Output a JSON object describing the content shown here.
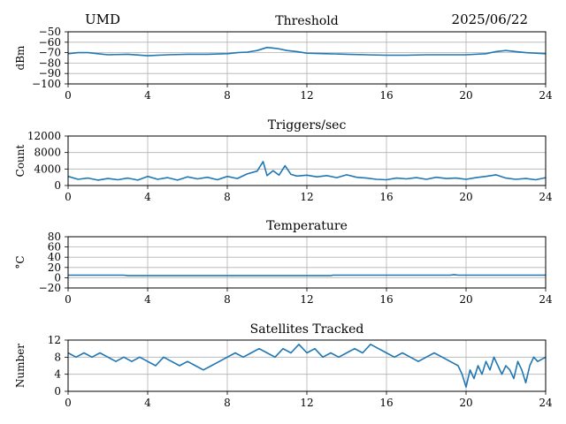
{
  "header": {
    "station": "UMD",
    "date": "2025/06/22"
  },
  "style": {
    "line_color": "#1f77b4",
    "grid_color": "#b0b0b0"
  },
  "chart_data": [
    {
      "type": "line",
      "title": "Threshold",
      "xlabel": "",
      "ylabel": "dBm",
      "xlim": [
        0,
        24
      ],
      "ylim": [
        -100,
        -50
      ],
      "xticks": [
        0,
        4,
        8,
        12,
        16,
        20,
        24
      ],
      "yticks": [
        -100,
        -90,
        -80,
        -70,
        -60,
        -50
      ],
      "ytick_labels": [
        "−100",
        "−90",
        "−80",
        "−70",
        "−60",
        "−50"
      ],
      "grid": true,
      "series": [
        {
          "x": [
            0,
            0.5,
            1,
            1.5,
            2,
            3,
            4,
            5,
            6,
            7,
            8,
            8.5,
            9,
            9.5,
            10,
            10.5,
            11,
            11.5,
            12,
            13,
            14,
            15,
            16,
            17,
            18,
            19,
            20,
            21,
            21.5,
            22,
            22.5,
            23,
            24
          ],
          "y": [
            -71,
            -70,
            -70,
            -71,
            -72,
            -71.5,
            -73,
            -72,
            -71.5,
            -71.5,
            -71,
            -70,
            -69.5,
            -68,
            -65,
            -66,
            -68,
            -69,
            -70.5,
            -71,
            -71.5,
            -72,
            -72.5,
            -72.5,
            -72,
            -72,
            -72,
            -71,
            -69,
            -68,
            -69,
            -70,
            -71
          ]
        }
      ]
    },
    {
      "type": "line",
      "title": "Triggers/sec",
      "xlabel": "",
      "ylabel": "Count",
      "xlim": [
        0,
        24
      ],
      "ylim": [
        0,
        12000
      ],
      "xticks": [
        0,
        4,
        8,
        12,
        16,
        20,
        24
      ],
      "yticks": [
        0,
        4000,
        8000,
        12000
      ],
      "ytick_labels": [
        "0",
        "4000",
        "8000",
        "12000"
      ],
      "grid": true,
      "series": [
        {
          "x": [
            0,
            0.5,
            1,
            1.5,
            2,
            2.5,
            3,
            3.5,
            4,
            4.5,
            5,
            5.5,
            6,
            6.5,
            7,
            7.5,
            8,
            8.5,
            9,
            9.5,
            9.8,
            10,
            10.3,
            10.6,
            10.9,
            11.2,
            11.5,
            12,
            12.5,
            13,
            13.5,
            14,
            14.5,
            15,
            15.5,
            16,
            16.5,
            17,
            17.5,
            18,
            18.5,
            19,
            19.5,
            20,
            20.5,
            21,
            21.5,
            22,
            22.5,
            23,
            23.5,
            24
          ],
          "y": [
            2200,
            1500,
            1800,
            1300,
            1700,
            1400,
            1800,
            1300,
            2200,
            1500,
            1900,
            1300,
            2100,
            1600,
            2000,
            1400,
            2200,
            1700,
            2800,
            3500,
            5800,
            2400,
            3600,
            2500,
            4800,
            2700,
            2300,
            2500,
            2100,
            2400,
            1900,
            2600,
            2000,
            1800,
            1500,
            1400,
            1800,
            1600,
            1900,
            1500,
            2000,
            1700,
            1800,
            1500,
            1900,
            2200,
            2600,
            1800,
            1500,
            1700,
            1400,
            1900
          ]
        }
      ]
    },
    {
      "type": "line",
      "title": "Temperature",
      "xlabel": "",
      "ylabel": "°C",
      "xlim": [
        0,
        24
      ],
      "ylim": [
        -20,
        80
      ],
      "xticks": [
        0,
        4,
        8,
        12,
        16,
        20,
        24
      ],
      "yticks": [
        -20,
        0,
        20,
        40,
        60,
        80
      ],
      "ytick_labels": [
        "−20",
        "0",
        "20",
        "40",
        "60",
        "80"
      ],
      "grid": true,
      "series": [
        {
          "x": [
            0,
            2.8,
            3,
            13.2,
            13.3,
            19.2,
            19.4,
            19.6,
            24
          ],
          "y": [
            5,
            5,
            4,
            4,
            5,
            5,
            6,
            5,
            5
          ]
        }
      ]
    },
    {
      "type": "line",
      "title": "Satellites Tracked",
      "xlabel": "",
      "ylabel": "Number",
      "xlim": [
        0,
        24
      ],
      "ylim": [
        0,
        12
      ],
      "xticks": [
        0,
        4,
        8,
        12,
        16,
        20,
        24
      ],
      "yticks": [
        0,
        4,
        8,
        12
      ],
      "ytick_labels": [
        "0",
        "4",
        "8",
        "12"
      ],
      "grid": true,
      "series": [
        {
          "x": [
            0,
            0.4,
            0.8,
            1.2,
            1.6,
            2,
            2.4,
            2.8,
            3.2,
            3.6,
            4,
            4.4,
            4.8,
            5.2,
            5.6,
            6,
            6.4,
            6.8,
            7.2,
            7.6,
            8,
            8.4,
            8.8,
            9.2,
            9.6,
            10,
            10.4,
            10.8,
            11.2,
            11.6,
            12,
            12.4,
            12.8,
            13.2,
            13.6,
            14,
            14.4,
            14.8,
            15.2,
            15.6,
            16,
            16.4,
            16.8,
            17.2,
            17.6,
            18,
            18.4,
            18.8,
            19.2,
            19.6,
            19.8,
            20,
            20.2,
            20.4,
            20.6,
            20.8,
            21,
            21.2,
            21.4,
            21.6,
            21.8,
            22,
            22.2,
            22.4,
            22.6,
            22.8,
            23,
            23.2,
            23.4,
            23.6,
            24
          ],
          "y": [
            9,
            8,
            9,
            8,
            9,
            8,
            7,
            8,
            7,
            8,
            7,
            6,
            8,
            7,
            6,
            7,
            6,
            5,
            6,
            7,
            8,
            9,
            8,
            9,
            10,
            9,
            8,
            10,
            9,
            11,
            9,
            10,
            8,
            9,
            8,
            9,
            10,
            9,
            11,
            10,
            9,
            8,
            9,
            8,
            7,
            8,
            9,
            8,
            7,
            6,
            4,
            1,
            5,
            3,
            6,
            4,
            7,
            5,
            8,
            6,
            4,
            6,
            5,
            3,
            7,
            5,
            2,
            6,
            8,
            7,
            8
          ]
        }
      ]
    }
  ]
}
